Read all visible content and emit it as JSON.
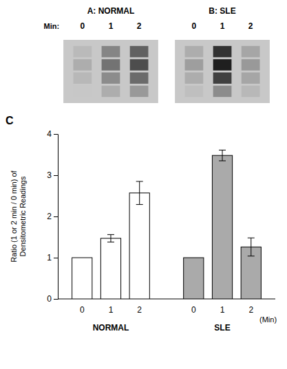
{
  "chart_data": [
    {
      "type": "heatmap",
      "title": "A: NORMAL",
      "xlabel": "Min:",
      "categories": [
        "0",
        "1",
        "2"
      ],
      "color": "#c8c8c8",
      "tick_labels": "x",
      "cells": [
        [
          0.78,
          0.72,
          0.68,
          0.73
        ],
        [
          0.68,
          0.55,
          0.45,
          0.52
        ],
        [
          0.6,
          0.42,
          0.3,
          0.38
        ]
      ]
    },
    {
      "type": "heatmap",
      "title": "B: SLE",
      "categories": [
        "0",
        "1",
        "2"
      ],
      "color": "#c8c8c8",
      "tick_labels": "x",
      "cells": [
        [
          0.75,
          0.68,
          0.62,
          0.68
        ],
        [
          0.55,
          0.25,
          0.12,
          0.2
        ],
        [
          0.72,
          0.65,
          0.6,
          0.65
        ]
      ]
    },
    {
      "type": "bar",
      "annotations": [
        "C"
      ],
      "categories": [
        "0",
        "1",
        "2"
      ],
      "series": [
        {
          "name": "NORMAL",
          "color": "white",
          "values": [
            1.0,
            1.47,
            2.57
          ],
          "errors": [
            0.0,
            0.09,
            0.28
          ]
        },
        {
          "name": "SLE",
          "color": "#aaaaaa",
          "values": [
            1.0,
            3.48,
            1.26
          ],
          "errors": [
            0.0,
            0.13,
            0.22
          ]
        }
      ],
      "ylabel": "Ratio (1 or 2 min / 0 min) of\nDensitometric Readings",
      "xlabel": "(Min)",
      "ylim": [
        0,
        4
      ],
      "yticks": [
        0,
        1,
        2,
        3,
        4
      ]
    }
  ]
}
